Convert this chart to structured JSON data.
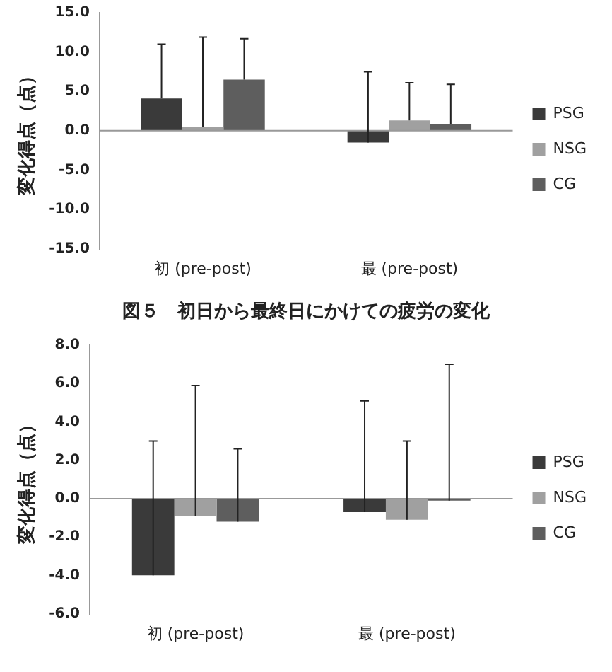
{
  "chart_data": [
    {
      "type": "bar",
      "ylabel": "変化得点（点）",
      "categories": [
        "初 (pre-post)",
        "最 (pre-post)"
      ],
      "series": [
        {
          "name": "PSG",
          "color": "#3a3a3a",
          "values": [
            4.1,
            -1.5
          ],
          "errors": [
            [
              4.1,
              11.0
            ],
            [
              -1.5,
              7.5
            ]
          ]
        },
        {
          "name": "NSG",
          "color": "#a0a0a0",
          "values": [
            0.5,
            1.3
          ],
          "errors": [
            [
              0.5,
              11.9
            ],
            [
              1.3,
              6.1
            ]
          ]
        },
        {
          "name": "CG",
          "color": "#5e5e5e",
          "values": [
            6.5,
            0.8
          ],
          "errors": [
            [
              6.5,
              11.7
            ],
            [
              0.8,
              5.9
            ]
          ]
        }
      ],
      "ylim": [
        -15,
        15
      ],
      "yticks": [
        {
          "value": -15,
          "label": "-15.0"
        },
        {
          "value": -10,
          "label": "-10.0"
        },
        {
          "value": -5,
          "label": "-5.0"
        },
        {
          "value": 0,
          "label": "0.0"
        },
        {
          "value": 5,
          "label": "5.0"
        },
        {
          "value": 10,
          "label": "10.0"
        },
        {
          "value": 15,
          "label": "15.0"
        }
      ],
      "legend": "right",
      "annotations": [
        "図５　初日から最終日にかけての疲労の変化"
      ]
    },
    {
      "type": "bar",
      "ylabel": "変化得点（点）",
      "categories": [
        "初 (pre-post)",
        "最 (pre-post)"
      ],
      "series": [
        {
          "name": "PSG",
          "color": "#3a3a3a",
          "values": [
            -4.0,
            -0.7
          ],
          "errors": [
            [
              -4.0,
              3.0
            ],
            [
              -0.7,
              5.1
            ]
          ]
        },
        {
          "name": "NSG",
          "color": "#a0a0a0",
          "values": [
            -0.9,
            -1.1
          ],
          "errors": [
            [
              -0.9,
              5.9
            ],
            [
              -1.1,
              3.0
            ]
          ]
        },
        {
          "name": "CG",
          "color": "#5e5e5e",
          "values": [
            -1.2,
            -0.1
          ],
          "errors": [
            [
              -1.2,
              2.6
            ],
            [
              -0.1,
              7.0
            ]
          ]
        }
      ],
      "ylim": [
        -6,
        8
      ],
      "yticks": [
        {
          "value": -6,
          "label": "-6.0"
        },
        {
          "value": -4,
          "label": "-4.0"
        },
        {
          "value": -2,
          "label": "-2.0"
        },
        {
          "value": 0,
          "label": "0.0"
        },
        {
          "value": 2,
          "label": "2.0"
        },
        {
          "value": 4,
          "label": "4.0"
        },
        {
          "value": 6,
          "label": "6.0"
        },
        {
          "value": 8,
          "label": "8.0"
        }
      ],
      "legend": "right"
    }
  ]
}
